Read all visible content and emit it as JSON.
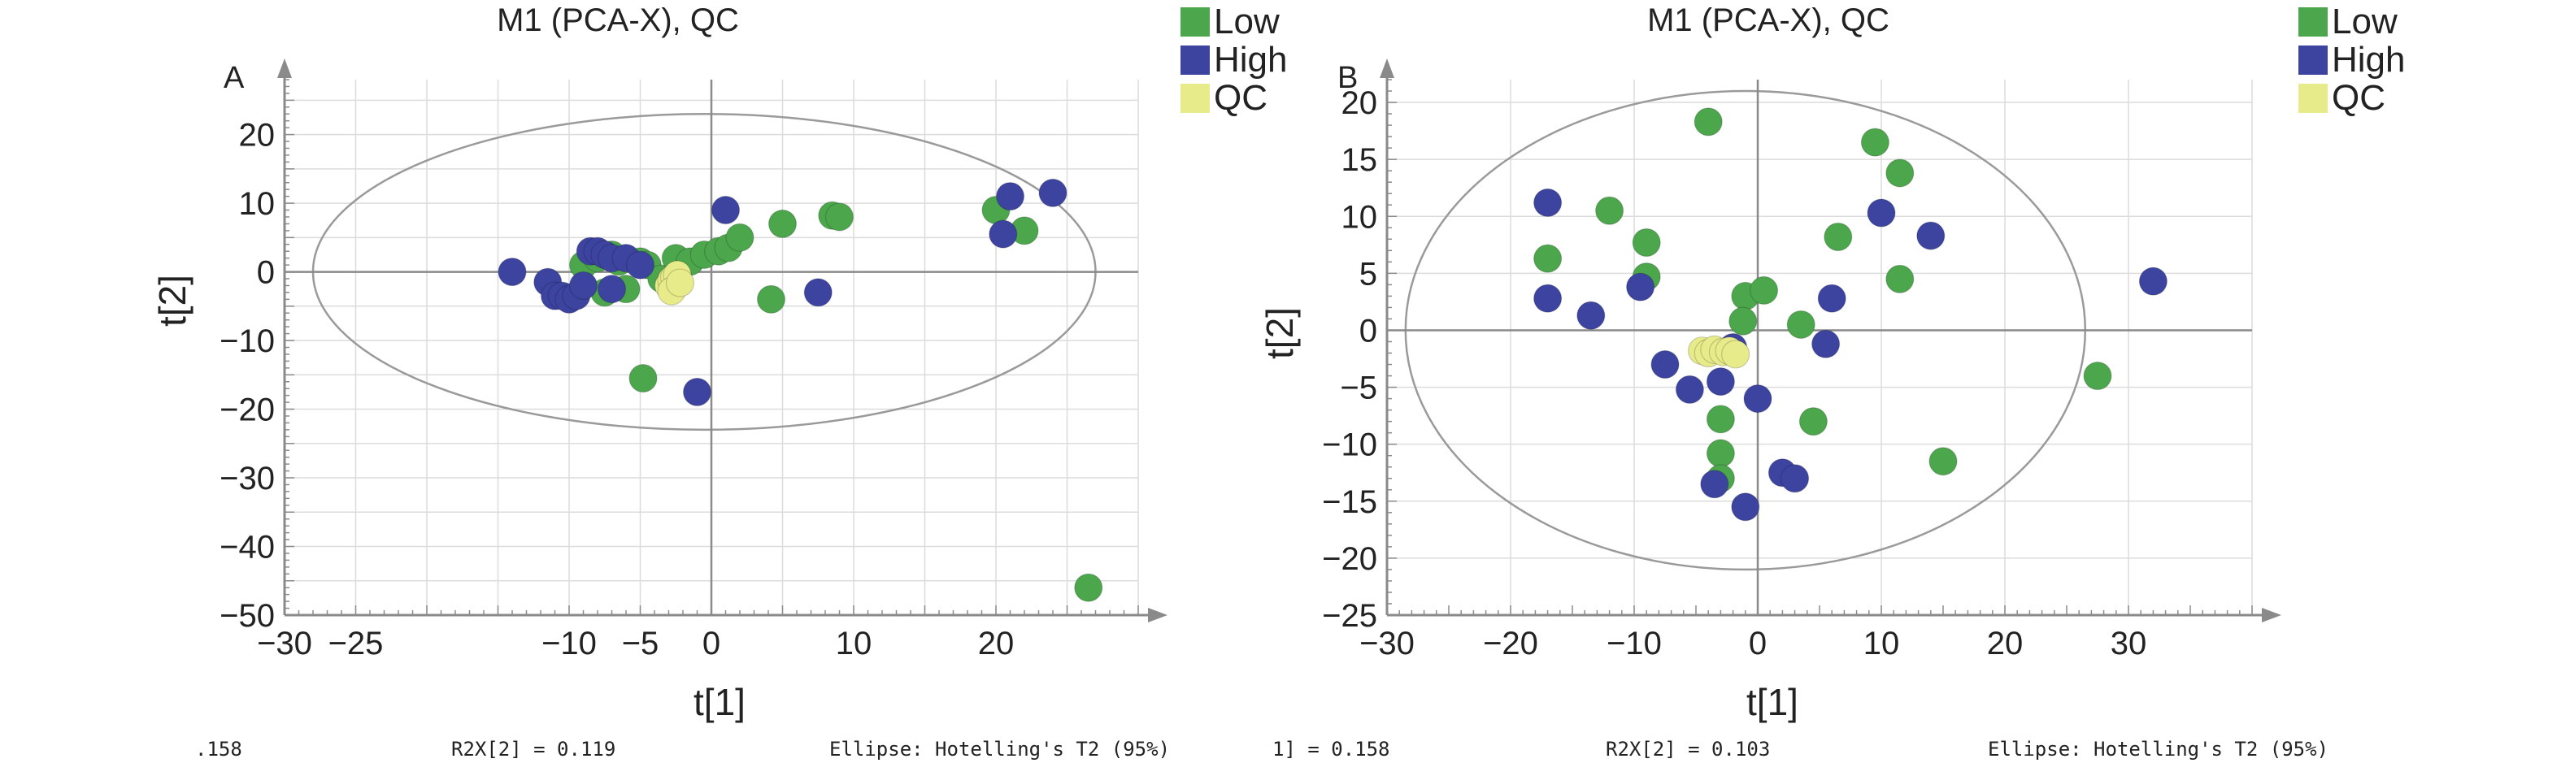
{
  "colors": {
    "low": "#4ca64c",
    "high": "#3c44a0",
    "qc": "#e8eb8a",
    "axis": "#8a8a8a",
    "grid": "#dcdcdc",
    "ellipse": "#9a9a9a",
    "text": "#222222"
  },
  "legend": {
    "low": "Low",
    "high": "High",
    "qc": "QC"
  },
  "footer_partial": {
    "left_r2x1_fragment": ".158",
    "right_r2x1_fragment": "1] = 0.158"
  },
  "chart_data": [
    {
      "panel": "A",
      "type": "scatter",
      "title": "M1 (PCA-X), QC",
      "xlabel": "t[1]",
      "ylabel": "t[2]",
      "xlim": [
        -30,
        30
      ],
      "ylim": [
        -50,
        28
      ],
      "xticks": [
        -30,
        -25,
        -10,
        -5,
        0,
        10,
        20
      ],
      "yticks": [
        20,
        10,
        0,
        -10,
        -20,
        -30,
        -40,
        -50
      ],
      "grid": true,
      "legend_position": "top-right",
      "ellipse": {
        "cx": -0.5,
        "cy": 0,
        "rx": 27.5,
        "ry": 23
      },
      "footer": {
        "r2x2": "R2X[2] = 0.119",
        "ellipse": "Ellipse: Hotelling's T2 (95%)"
      },
      "series": [
        {
          "name": "Low",
          "points": [
            [
              -9,
              1
            ],
            [
              -8,
              2
            ],
            [
              -7,
              2.5
            ],
            [
              -6.5,
              1.5
            ],
            [
              -5,
              1.5
            ],
            [
              -4.5,
              1
            ],
            [
              -3.5,
              -1
            ],
            [
              -2.5,
              2
            ],
            [
              -1.5,
              1.5
            ],
            [
              -0.5,
              2.5
            ],
            [
              0.5,
              3
            ],
            [
              1.2,
              3.5
            ],
            [
              2,
              5
            ],
            [
              5,
              7
            ],
            [
              8.5,
              8.2
            ],
            [
              9,
              8
            ],
            [
              20,
              9
            ],
            [
              22,
              6
            ],
            [
              -7.5,
              -3
            ],
            [
              -6,
              -2.5
            ],
            [
              -4.8,
              -15.5
            ],
            [
              4.2,
              -4
            ],
            [
              26.5,
              -46
            ]
          ]
        },
        {
          "name": "High",
          "points": [
            [
              -14,
              0
            ],
            [
              -11.5,
              -1.5
            ],
            [
              -11,
              -3.5
            ],
            [
              -10.5,
              -3.5
            ],
            [
              -10,
              -4
            ],
            [
              -9.5,
              -3.5
            ],
            [
              -9,
              -2
            ],
            [
              -8.5,
              3
            ],
            [
              -8,
              3
            ],
            [
              -7.5,
              2.5
            ],
            [
              -7,
              2
            ],
            [
              -6,
              2
            ],
            [
              -5,
              1
            ],
            [
              -7,
              -2.5
            ],
            [
              1,
              9
            ],
            [
              7.5,
              -3
            ],
            [
              -1,
              -17.5
            ],
            [
              20.5,
              5.5
            ],
            [
              21,
              11
            ],
            [
              24,
              11.5
            ]
          ]
        },
        {
          "name": "QC",
          "points": [
            [
              -3,
              -2
            ],
            [
              -2.8,
              -1.2
            ],
            [
              -2.6,
              -0.8
            ],
            [
              -2.4,
              -0.4
            ],
            [
              -2.8,
              -2.8
            ],
            [
              -2.2,
              -1.6
            ]
          ]
        }
      ]
    },
    {
      "panel": "B",
      "type": "scatter",
      "title": "M1 (PCA-X), QC",
      "xlabel": "t[1]",
      "ylabel": "t[2]",
      "xlim": [
        -30,
        40
      ],
      "ylim": [
        -25,
        22
      ],
      "xticks": [
        -30,
        -20,
        -10,
        0,
        10,
        20,
        30
      ],
      "yticks": [
        20,
        15,
        10,
        5,
        0,
        -5,
        -10,
        -15,
        -20,
        -25
      ],
      "grid": true,
      "legend_position": "top-right",
      "ellipse": {
        "cx": -1,
        "cy": 0,
        "rx": 27.5,
        "ry": 21
      },
      "footer": {
        "r2x2": "R2X[2] = 0.103",
        "ellipse": "Ellipse: Hotelling's T2 (95%)"
      },
      "series": [
        {
          "name": "Low",
          "points": [
            [
              -4,
              18.3
            ],
            [
              9.5,
              16.5
            ],
            [
              11.5,
              13.8
            ],
            [
              -12,
              10.5
            ],
            [
              -9,
              7.7
            ],
            [
              -17,
              6.3
            ],
            [
              -9,
              4.7
            ],
            [
              6.5,
              8.2
            ],
            [
              11.5,
              4.5
            ],
            [
              -1,
              3
            ],
            [
              0.5,
              3.5
            ],
            [
              -1.2,
              0.8
            ],
            [
              3.5,
              0.5
            ],
            [
              -3,
              -7.8
            ],
            [
              4.5,
              -8
            ],
            [
              -3,
              -10.8
            ],
            [
              -3,
              -13
            ],
            [
              15,
              -11.5
            ],
            [
              27.5,
              -4
            ]
          ]
        },
        {
          "name": "High",
          "points": [
            [
              -17,
              11.2
            ],
            [
              -17,
              2.8
            ],
            [
              -13.5,
              1.3
            ],
            [
              -9.5,
              3.8
            ],
            [
              10,
              10.3
            ],
            [
              14,
              8.3
            ],
            [
              6,
              2.8
            ],
            [
              5.5,
              -1.2
            ],
            [
              -7.5,
              -3
            ],
            [
              -5.5,
              -5.2
            ],
            [
              -3,
              -4.5
            ],
            [
              -2,
              -1.5
            ],
            [
              0,
              -6
            ],
            [
              -3.5,
              -13.5
            ],
            [
              2,
              -12.5
            ],
            [
              3,
              -13
            ],
            [
              -1,
              -15.5
            ],
            [
              32,
              4.3
            ]
          ]
        },
        {
          "name": "QC",
          "points": [
            [
              -4.5,
              -1.8
            ],
            [
              -4,
              -2
            ],
            [
              -3.5,
              -1.7
            ],
            [
              -2.8,
              -1.9
            ],
            [
              -2.3,
              -1.8
            ],
            [
              -1.8,
              -2.1
            ]
          ]
        }
      ]
    }
  ]
}
